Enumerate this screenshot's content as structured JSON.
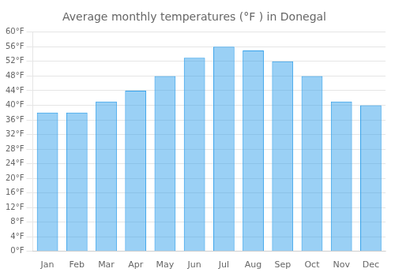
{
  "chart_data": {
    "type": "bar",
    "title": "Average monthly temperatures (°F ) in Donegal",
    "categories": [
      "Jan",
      "Feb",
      "Mar",
      "Apr",
      "May",
      "Jun",
      "Jul",
      "Aug",
      "Sep",
      "Oct",
      "Nov",
      "Dec"
    ],
    "values": [
      38,
      38,
      41,
      44,
      48,
      53,
      56,
      55,
      52,
      48,
      41,
      40
    ],
    "ylim": [
      0,
      60
    ],
    "yticks": [
      {
        "value": 0,
        "label": "0°F"
      },
      {
        "value": 4,
        "label": "4°F"
      },
      {
        "value": 8,
        "label": "8°F"
      },
      {
        "value": 12,
        "label": "12°F"
      },
      {
        "value": 16,
        "label": "16°F"
      },
      {
        "value": 20,
        "label": "20°F"
      },
      {
        "value": 24,
        "label": "24°F"
      },
      {
        "value": 28,
        "label": "28°F"
      },
      {
        "value": 32,
        "label": "32°F"
      },
      {
        "value": 36,
        "label": "36°F"
      },
      {
        "value": 40,
        "label": "40°F"
      },
      {
        "value": 44,
        "label": "44°F"
      },
      {
        "value": 48,
        "label": "48°F"
      },
      {
        "value": 52,
        "label": "52°F"
      },
      {
        "value": 56,
        "label": "56°F"
      },
      {
        "value": 60,
        "label": "60°F"
      }
    ],
    "grid": true
  }
}
